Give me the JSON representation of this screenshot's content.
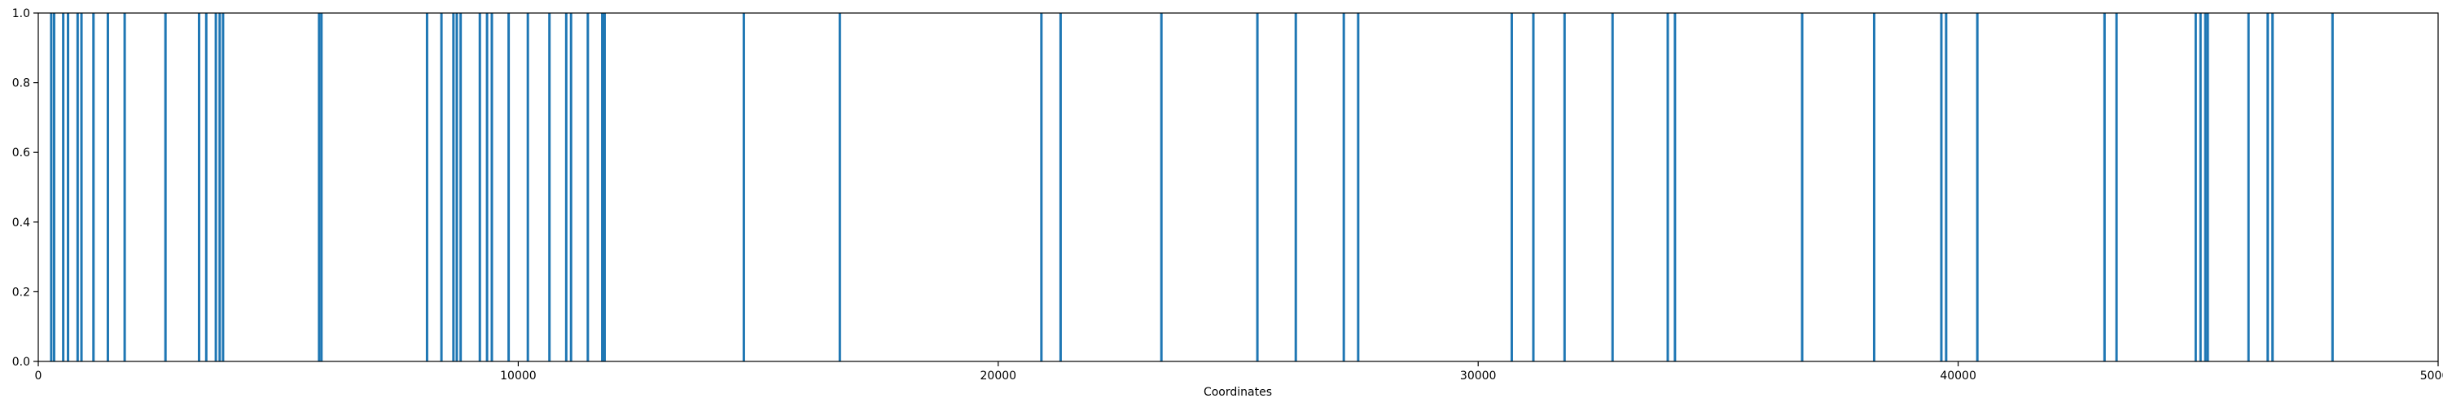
{
  "chart_data": {
    "type": "bar",
    "title": "",
    "xlabel": "Coordinates",
    "ylabel": "",
    "xlim": [
      0,
      50000
    ],
    "ylim": [
      0,
      1.0
    ],
    "xticks": [
      0,
      10000,
      20000,
      30000,
      40000,
      50000
    ],
    "xtick_labels": [
      "0",
      "10000",
      "20000",
      "30000",
      "40000",
      "50000"
    ],
    "yticks": [
      0.0,
      0.2,
      0.4,
      0.6,
      0.8,
      1.0
    ],
    "ytick_labels": [
      "0.0",
      "0.2",
      "0.4",
      "0.6",
      "0.8",
      "1.0"
    ],
    "grid": false,
    "legend": "none",
    "color": "#1f77b4",
    "series": [
      {
        "x": [
          270,
          330,
          520,
          620,
          820,
          900,
          1150,
          1450,
          1800,
          2650,
          3350,
          3500,
          3700,
          3780,
          3850,
          5850,
          5900,
          8100,
          8400,
          8650,
          8720,
          8800,
          9200,
          9350,
          9450,
          9800,
          10200,
          10650,
          11000,
          11100,
          11450,
          11750,
          11800,
          14700,
          16700,
          20900,
          21300,
          23400,
          25400,
          26200,
          27200,
          27500,
          30700,
          31150,
          31800,
          32800,
          33950,
          34100,
          36750,
          38250,
          39650,
          39750,
          40400,
          43050,
          43300,
          44950,
          45050,
          45150,
          45200,
          46050,
          46450,
          46550,
          47800
        ],
        "values": [
          1,
          1,
          1,
          1,
          1,
          1,
          1,
          1,
          1,
          1,
          1,
          1,
          1,
          1,
          1,
          1,
          1,
          1,
          1,
          1,
          1,
          1,
          1,
          1,
          1,
          1,
          1,
          1,
          1,
          1,
          1,
          1,
          1,
          1,
          1,
          1,
          1,
          1,
          1,
          1,
          1,
          1,
          1,
          1,
          1,
          1,
          1,
          1,
          1,
          1,
          1,
          1,
          1,
          1,
          1,
          1,
          1,
          1,
          1,
          1,
          1,
          1,
          1
        ]
      }
    ]
  }
}
